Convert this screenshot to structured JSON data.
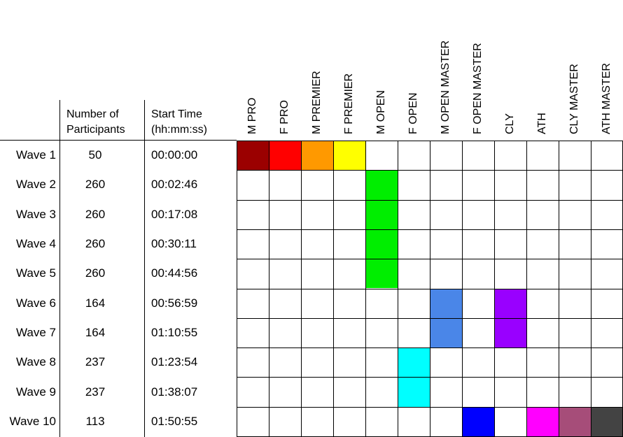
{
  "headers": {
    "participants_line1": "Number of",
    "participants_line2": "Participants",
    "start_line1": "Start Time",
    "start_line2": "(hh:mm:ss)"
  },
  "categories": [
    "M PRO",
    "F PRO",
    "M PREMIER",
    "F PREMIER",
    "M OPEN",
    "F OPEN",
    "M OPEN MASTER",
    "F OPEN MASTER",
    "CLY",
    "ATH",
    "CLY MASTER",
    "ATH MASTER"
  ],
  "waves": [
    {
      "label": "Wave 1",
      "participants": "50",
      "start": "00:00:00"
    },
    {
      "label": "Wave 2",
      "participants": "260",
      "start": "00:02:46"
    },
    {
      "label": "Wave 3",
      "participants": "260",
      "start": "00:17:08"
    },
    {
      "label": "Wave 4",
      "participants": "260",
      "start": "00:30:11"
    },
    {
      "label": "Wave 5",
      "participants": "260",
      "start": "00:44:56"
    },
    {
      "label": "Wave 6",
      "participants": "164",
      "start": "00:56:59"
    },
    {
      "label": "Wave 7",
      "participants": "164",
      "start": "01:10:55"
    },
    {
      "label": "Wave 8",
      "participants": "237",
      "start": "01:23:54"
    },
    {
      "label": "Wave 9",
      "participants": "237",
      "start": "01:38:07"
    },
    {
      "label": "Wave 10",
      "participants": "113",
      "start": "01:50:55"
    }
  ],
  "assignments": [
    {
      "wave": 0,
      "category": 0,
      "color": "#9b0000"
    },
    {
      "wave": 0,
      "category": 1,
      "color": "#ff0000"
    },
    {
      "wave": 0,
      "category": 2,
      "color": "#ff9900"
    },
    {
      "wave": 0,
      "category": 3,
      "color": "#ffff00"
    },
    {
      "wave": 1,
      "category": 4,
      "color": "#00ee00"
    },
    {
      "wave": 2,
      "category": 4,
      "color": "#00ee00"
    },
    {
      "wave": 3,
      "category": 4,
      "color": "#00ee00"
    },
    {
      "wave": 4,
      "category": 4,
      "color": "#00ee00"
    },
    {
      "wave": 5,
      "category": 6,
      "color": "#4a86e8"
    },
    {
      "wave": 6,
      "category": 6,
      "color": "#4a86e8"
    },
    {
      "wave": 5,
      "category": 8,
      "color": "#9900ff"
    },
    {
      "wave": 6,
      "category": 8,
      "color": "#9900ff"
    },
    {
      "wave": 7,
      "category": 5,
      "color": "#00ffff"
    },
    {
      "wave": 8,
      "category": 5,
      "color": "#00ffff"
    },
    {
      "wave": 9,
      "category": 7,
      "color": "#0000ff"
    },
    {
      "wave": 9,
      "category": 9,
      "color": "#ff00ff"
    },
    {
      "wave": 9,
      "category": 10,
      "color": "#a64d79"
    },
    {
      "wave": 9,
      "category": 11,
      "color": "#434343"
    }
  ]
}
